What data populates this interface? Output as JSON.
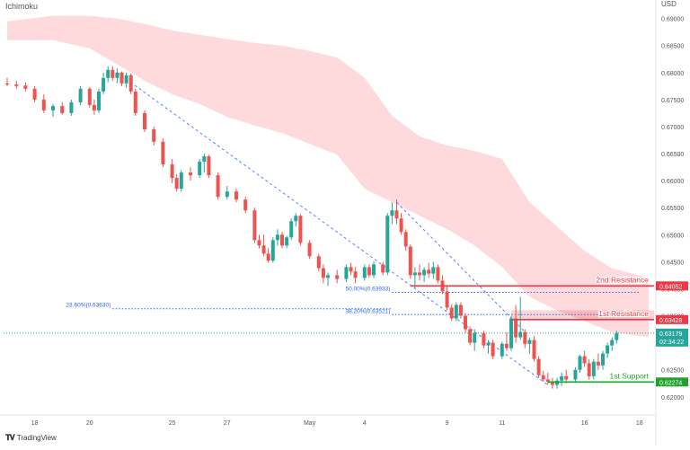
{
  "indicator_label": "Ichimoku",
  "currency_label": "USD",
  "branding": {
    "logo_icon": "tradingview-logo-icon",
    "text": "TradingView"
  },
  "colors": {
    "bull": "#26a69a",
    "bear": "#ef5350",
    "cloud": "#ffcdd2",
    "resistance": "#f23645",
    "support": "#22a22c",
    "fib": "#2962ff",
    "current": "#26a69a"
  },
  "chart_data": {
    "type": "candlestick",
    "ylim": [
      0.6178,
      0.6921
    ],
    "y_ticks": [
      "0.69000",
      "0.68500",
      "0.68000",
      "0.67500",
      "0.67000",
      "0.66500",
      "0.66000",
      "0.65500",
      "0.65000",
      "0.64500",
      "0.64000",
      "0.63500",
      "0.63000",
      "0.62500",
      "0.62000"
    ],
    "y_tick_values": [
      0.69,
      0.685,
      0.68,
      0.675,
      0.67,
      0.665,
      0.66,
      0.655,
      0.65,
      0.645,
      0.64,
      0.635,
      0.63,
      0.625,
      0.62
    ],
    "x_ticks": [
      "18",
      "20",
      "25",
      "27",
      "May",
      "4",
      "9",
      "11",
      "16",
      "18"
    ],
    "x_tick_bars": [
      6,
      18,
      36,
      48,
      66,
      78,
      96,
      108,
      126,
      138
    ],
    "bars_count": 140,
    "candles": [
      {
        "i": 0,
        "o": 0.678,
        "h": 0.679,
        "l": 0.6775,
        "c": 0.6778
      },
      {
        "i": 2,
        "o": 0.6778,
        "h": 0.6785,
        "l": 0.677,
        "c": 0.6775
      },
      {
        "i": 4,
        "o": 0.6776,
        "h": 0.6782,
        "l": 0.6765,
        "c": 0.677
      },
      {
        "i": 6,
        "o": 0.677,
        "h": 0.6775,
        "l": 0.6745,
        "c": 0.675
      },
      {
        "i": 8,
        "o": 0.675,
        "h": 0.676,
        "l": 0.6725,
        "c": 0.673
      },
      {
        "i": 10,
        "o": 0.673,
        "h": 0.6742,
        "l": 0.6718,
        "c": 0.6738
      },
      {
        "i": 12,
        "o": 0.6738,
        "h": 0.6745,
        "l": 0.6722,
        "c": 0.6725
      },
      {
        "i": 14,
        "o": 0.6725,
        "h": 0.675,
        "l": 0.672,
        "c": 0.6745
      },
      {
        "i": 16,
        "o": 0.6745,
        "h": 0.6775,
        "l": 0.674,
        "c": 0.677
      },
      {
        "i": 18,
        "o": 0.677,
        "h": 0.6773,
        "l": 0.6735,
        "c": 0.674
      },
      {
        "i": 19,
        "o": 0.674,
        "h": 0.675,
        "l": 0.6722,
        "c": 0.673
      },
      {
        "i": 20,
        "o": 0.673,
        "h": 0.677,
        "l": 0.6725,
        "c": 0.6765
      },
      {
        "i": 21,
        "o": 0.6765,
        "h": 0.68,
        "l": 0.676,
        "c": 0.679
      },
      {
        "i": 22,
        "o": 0.679,
        "h": 0.6812,
        "l": 0.6782,
        "c": 0.6805
      },
      {
        "i": 23,
        "o": 0.6805,
        "h": 0.6812,
        "l": 0.6785,
        "c": 0.679
      },
      {
        "i": 24,
        "o": 0.679,
        "h": 0.6808,
        "l": 0.678,
        "c": 0.68
      },
      {
        "i": 25,
        "o": 0.68,
        "h": 0.6802,
        "l": 0.6775,
        "c": 0.678
      },
      {
        "i": 26,
        "o": 0.678,
        "h": 0.68,
        "l": 0.6772,
        "c": 0.6795
      },
      {
        "i": 27,
        "o": 0.6795,
        "h": 0.6798,
        "l": 0.676,
        "c": 0.6765
      },
      {
        "i": 28,
        "o": 0.6765,
        "h": 0.677,
        "l": 0.672,
        "c": 0.6725
      },
      {
        "i": 30,
        "o": 0.6725,
        "h": 0.673,
        "l": 0.669,
        "c": 0.6695
      },
      {
        "i": 32,
        "o": 0.6695,
        "h": 0.67,
        "l": 0.6665,
        "c": 0.6672
      },
      {
        "i": 34,
        "o": 0.6672,
        "h": 0.6678,
        "l": 0.6625,
        "c": 0.663
      },
      {
        "i": 36,
        "o": 0.663,
        "h": 0.664,
        "l": 0.6595,
        "c": 0.6605
      },
      {
        "i": 37,
        "o": 0.6605,
        "h": 0.6612,
        "l": 0.658,
        "c": 0.6585
      },
      {
        "i": 38,
        "o": 0.6585,
        "h": 0.662,
        "l": 0.658,
        "c": 0.6615
      },
      {
        "i": 40,
        "o": 0.6615,
        "h": 0.6625,
        "l": 0.66,
        "c": 0.661
      },
      {
        "i": 42,
        "o": 0.661,
        "h": 0.664,
        "l": 0.6605,
        "c": 0.6635
      },
      {
        "i": 43,
        "o": 0.6635,
        "h": 0.665,
        "l": 0.6615,
        "c": 0.6645
      },
      {
        "i": 44,
        "o": 0.6645,
        "h": 0.6648,
        "l": 0.6605,
        "c": 0.661
      },
      {
        "i": 46,
        "o": 0.661,
        "h": 0.6615,
        "l": 0.6565,
        "c": 0.657
      },
      {
        "i": 48,
        "o": 0.657,
        "h": 0.659,
        "l": 0.6565,
        "c": 0.658
      },
      {
        "i": 50,
        "o": 0.658,
        "h": 0.6585,
        "l": 0.656,
        "c": 0.6565
      },
      {
        "i": 52,
        "o": 0.6565,
        "h": 0.657,
        "l": 0.654,
        "c": 0.6545
      },
      {
        "i": 54,
        "o": 0.6545,
        "h": 0.655,
        "l": 0.6485,
        "c": 0.649
      },
      {
        "i": 55,
        "o": 0.649,
        "h": 0.65,
        "l": 0.6475,
        "c": 0.648
      },
      {
        "i": 56,
        "o": 0.648,
        "h": 0.65,
        "l": 0.646,
        "c": 0.6465
      },
      {
        "i": 57,
        "o": 0.6465,
        "h": 0.6475,
        "l": 0.6448,
        "c": 0.6452
      },
      {
        "i": 58,
        "o": 0.6452,
        "h": 0.6495,
        "l": 0.6448,
        "c": 0.649
      },
      {
        "i": 59,
        "o": 0.649,
        "h": 0.651,
        "l": 0.648,
        "c": 0.65
      },
      {
        "i": 60,
        "o": 0.65,
        "h": 0.6505,
        "l": 0.6475,
        "c": 0.648
      },
      {
        "i": 61,
        "o": 0.648,
        "h": 0.6498,
        "l": 0.6475,
        "c": 0.6495
      },
      {
        "i": 62,
        "o": 0.6495,
        "h": 0.653,
        "l": 0.649,
        "c": 0.6525
      },
      {
        "i": 63,
        "o": 0.6525,
        "h": 0.654,
        "l": 0.6515,
        "c": 0.6535
      },
      {
        "i": 64,
        "o": 0.6535,
        "h": 0.6538,
        "l": 0.648,
        "c": 0.6485
      },
      {
        "i": 66,
        "o": 0.6485,
        "h": 0.649,
        "l": 0.6455,
        "c": 0.646
      },
      {
        "i": 68,
        "o": 0.646,
        "h": 0.6465,
        "l": 0.6432,
        "c": 0.6438
      },
      {
        "i": 69,
        "o": 0.6438,
        "h": 0.6445,
        "l": 0.641,
        "c": 0.642
      },
      {
        "i": 70,
        "o": 0.642,
        "h": 0.643,
        "l": 0.6405,
        "c": 0.6425
      },
      {
        "i": 72,
        "o": 0.6425,
        "h": 0.6435,
        "l": 0.641,
        "c": 0.6418
      },
      {
        "i": 74,
        "o": 0.6418,
        "h": 0.6445,
        "l": 0.6412,
        "c": 0.644
      },
      {
        "i": 75,
        "o": 0.644,
        "h": 0.6448,
        "l": 0.6425,
        "c": 0.6432
      },
      {
        "i": 76,
        "o": 0.6432,
        "h": 0.644,
        "l": 0.641,
        "c": 0.642
      },
      {
        "i": 78,
        "o": 0.642,
        "h": 0.6445,
        "l": 0.6415,
        "c": 0.644
      },
      {
        "i": 79,
        "o": 0.644,
        "h": 0.6445,
        "l": 0.642,
        "c": 0.6425
      },
      {
        "i": 80,
        "o": 0.6425,
        "h": 0.645,
        "l": 0.642,
        "c": 0.6445
      },
      {
        "i": 82,
        "o": 0.6445,
        "h": 0.645,
        "l": 0.6425,
        "c": 0.643
      },
      {
        "i": 83,
        "o": 0.643,
        "h": 0.654,
        "l": 0.6425,
        "c": 0.6535
      },
      {
        "i": 84,
        "o": 0.6535,
        "h": 0.656,
        "l": 0.652,
        "c": 0.6545
      },
      {
        "i": 85,
        "o": 0.6545,
        "h": 0.6565,
        "l": 0.652,
        "c": 0.653
      },
      {
        "i": 86,
        "o": 0.653,
        "h": 0.654,
        "l": 0.65,
        "c": 0.6505
      },
      {
        "i": 87,
        "o": 0.6505,
        "h": 0.651,
        "l": 0.647,
        "c": 0.6478
      },
      {
        "i": 88,
        "o": 0.6478,
        "h": 0.6482,
        "l": 0.6418,
        "c": 0.6425
      },
      {
        "i": 89,
        "o": 0.6425,
        "h": 0.644,
        "l": 0.64,
        "c": 0.643
      },
      {
        "i": 90,
        "o": 0.643,
        "h": 0.6445,
        "l": 0.6415,
        "c": 0.6425
      },
      {
        "i": 91,
        "o": 0.6425,
        "h": 0.644,
        "l": 0.6412,
        "c": 0.6435
      },
      {
        "i": 92,
        "o": 0.6435,
        "h": 0.6448,
        "l": 0.642,
        "c": 0.6428
      },
      {
        "i": 93,
        "o": 0.6428,
        "h": 0.645,
        "l": 0.6418,
        "c": 0.644
      },
      {
        "i": 94,
        "o": 0.644,
        "h": 0.6445,
        "l": 0.641,
        "c": 0.6415
      },
      {
        "i": 95,
        "o": 0.6415,
        "h": 0.6425,
        "l": 0.639,
        "c": 0.6395
      },
      {
        "i": 96,
        "o": 0.6395,
        "h": 0.6405,
        "l": 0.636,
        "c": 0.6365
      },
      {
        "i": 97,
        "o": 0.6365,
        "h": 0.6372,
        "l": 0.634,
        "c": 0.6345
      },
      {
        "i": 98,
        "o": 0.6345,
        "h": 0.6375,
        "l": 0.634,
        "c": 0.637
      },
      {
        "i": 99,
        "o": 0.637,
        "h": 0.6375,
        "l": 0.6345,
        "c": 0.635
      },
      {
        "i": 100,
        "o": 0.635,
        "h": 0.6355,
        "l": 0.6318,
        "c": 0.6325
      },
      {
        "i": 101,
        "o": 0.6325,
        "h": 0.633,
        "l": 0.6295,
        "c": 0.63
      },
      {
        "i": 102,
        "o": 0.63,
        "h": 0.6325,
        "l": 0.6285,
        "c": 0.6318
      },
      {
        "i": 104,
        "o": 0.6318,
        "h": 0.6322,
        "l": 0.629,
        "c": 0.6295
      },
      {
        "i": 105,
        "o": 0.6295,
        "h": 0.6305,
        "l": 0.628,
        "c": 0.63
      },
      {
        "i": 106,
        "o": 0.63,
        "h": 0.6305,
        "l": 0.627,
        "c": 0.6275
      },
      {
        "i": 108,
        "o": 0.6275,
        "h": 0.6302,
        "l": 0.627,
        "c": 0.6298
      },
      {
        "i": 109,
        "o": 0.6298,
        "h": 0.632,
        "l": 0.6285,
        "c": 0.629
      },
      {
        "i": 110,
        "o": 0.629,
        "h": 0.635,
        "l": 0.6285,
        "c": 0.6345
      },
      {
        "i": 111,
        "o": 0.6345,
        "h": 0.637,
        "l": 0.63,
        "c": 0.631
      },
      {
        "i": 112,
        "o": 0.631,
        "h": 0.6385,
        "l": 0.6305,
        "c": 0.632
      },
      {
        "i": 113,
        "o": 0.632,
        "h": 0.6325,
        "l": 0.629,
        "c": 0.6298
      },
      {
        "i": 114,
        "o": 0.6298,
        "h": 0.631,
        "l": 0.628,
        "c": 0.6305
      },
      {
        "i": 115,
        "o": 0.6305,
        "h": 0.6312,
        "l": 0.6265,
        "c": 0.627
      },
      {
        "i": 116,
        "o": 0.627,
        "h": 0.6275,
        "l": 0.6235,
        "c": 0.624
      },
      {
        "i": 117,
        "o": 0.624,
        "h": 0.6248,
        "l": 0.6228,
        "c": 0.6232
      },
      {
        "i": 118,
        "o": 0.6232,
        "h": 0.6245,
        "l": 0.6222,
        "c": 0.6228
      },
      {
        "i": 119,
        "o": 0.6228,
        "h": 0.6235,
        "l": 0.6215,
        "c": 0.6222
      },
      {
        "i": 120,
        "o": 0.6222,
        "h": 0.6235,
        "l": 0.6215,
        "c": 0.623
      },
      {
        "i": 121,
        "o": 0.623,
        "h": 0.6245,
        "l": 0.622,
        "c": 0.6238
      },
      {
        "i": 122,
        "o": 0.6238,
        "h": 0.625,
        "l": 0.6225,
        "c": 0.6232
      },
      {
        "i": 124,
        "o": 0.6232,
        "h": 0.6255,
        "l": 0.6228,
        "c": 0.625
      },
      {
        "i": 125,
        "o": 0.625,
        "h": 0.6278,
        "l": 0.6245,
        "c": 0.6275
      },
      {
        "i": 126,
        "o": 0.6275,
        "h": 0.6285,
        "l": 0.6255,
        "c": 0.6262
      },
      {
        "i": 127,
        "o": 0.6262,
        "h": 0.627,
        "l": 0.6232,
        "c": 0.6238
      },
      {
        "i": 128,
        "o": 0.6238,
        "h": 0.627,
        "l": 0.6232,
        "c": 0.6265
      },
      {
        "i": 129,
        "o": 0.6265,
        "h": 0.628,
        "l": 0.625,
        "c": 0.6258
      },
      {
        "i": 130,
        "o": 0.6258,
        "h": 0.6285,
        "l": 0.625,
        "c": 0.628
      },
      {
        "i": 131,
        "o": 0.628,
        "h": 0.63,
        "l": 0.6272,
        "c": 0.6295
      },
      {
        "i": 132,
        "o": 0.6295,
        "h": 0.631,
        "l": 0.6285,
        "c": 0.6305
      },
      {
        "i": 133,
        "o": 0.6305,
        "h": 0.6322,
        "l": 0.6298,
        "c": 0.6318
      }
    ],
    "cloud": {
      "bar_x": [
        0,
        10,
        18,
        24,
        30,
        36,
        42,
        48,
        54,
        60,
        66,
        72,
        78,
        84,
        90,
        96,
        102,
        108,
        114,
        120,
        126,
        132,
        140
      ],
      "top": [
        0.6895,
        0.6905,
        0.6905,
        0.69,
        0.689,
        0.6878,
        0.687,
        0.6862,
        0.6855,
        0.685,
        0.684,
        0.6828,
        0.679,
        0.672,
        0.6682,
        0.6665,
        0.6655,
        0.664,
        0.656,
        0.6515,
        0.647,
        0.6438,
        0.642
      ],
      "bottom": [
        0.686,
        0.686,
        0.6845,
        0.6815,
        0.6785,
        0.676,
        0.6742,
        0.6718,
        0.6702,
        0.6688,
        0.6668,
        0.6648,
        0.6585,
        0.656,
        0.6535,
        0.651,
        0.648,
        0.644,
        0.6385,
        0.636,
        0.634,
        0.632,
        0.631
      ]
    },
    "trendlines": [
      {
        "x1": 24,
        "y1": 0.68,
        "x2": 118,
        "y2": 0.6222
      },
      {
        "x1": 85,
        "y1": 0.656,
        "x2": 113,
        "y2": 0.632
      }
    ],
    "fib_levels": [
      {
        "label": "50.00%(0.63933)",
        "value": 0.63933,
        "x_start": 84,
        "x_end": 138
      },
      {
        "label": "38.20%(0.63521)",
        "value": 0.63521,
        "x_start": 84,
        "x_end": 138
      },
      {
        "label": "23.60%(0.63630)",
        "value": 0.6363,
        "x_start": 23,
        "x_end": 84
      }
    ],
    "levels": [
      {
        "name": "2nd Resistance",
        "value": 0.64052,
        "price_label": "0.64052",
        "kind": "resistance",
        "x_start": 88
      },
      {
        "name": "1st Resistance",
        "value": 0.63428,
        "price_label": "0.63428",
        "kind": "resistance",
        "x_start": 110
      },
      {
        "name": "1st Support",
        "value": 0.62274,
        "price_label": "0.62274",
        "kind": "support",
        "x_start": 118
      }
    ],
    "resistance_zone": {
      "top": 0.636,
      "bottom": 0.63428,
      "x_start": 110
    },
    "current_price": {
      "value": 0.63179,
      "label": "0.63179",
      "countdown": "02:34:22"
    }
  }
}
